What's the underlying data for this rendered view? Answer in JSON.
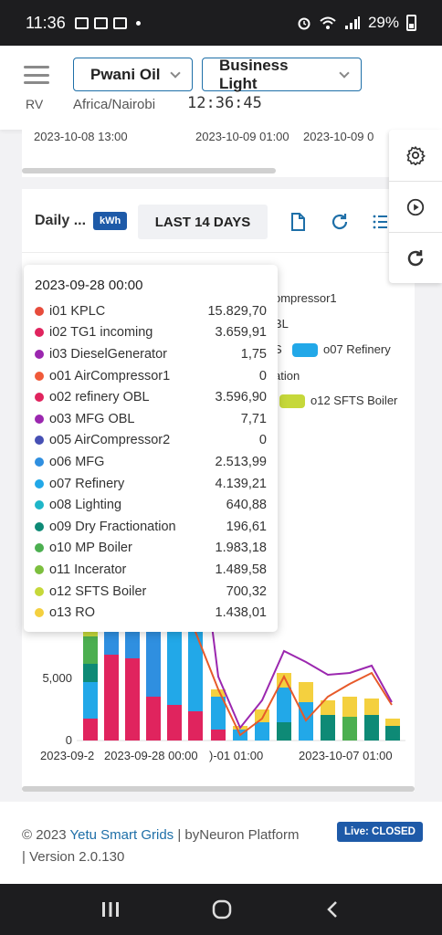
{
  "status_bar": {
    "time": "11:36",
    "battery": "29%",
    "notification_icons": [
      "gallery-icon",
      "mail-icon",
      "mail-icon"
    ],
    "right_icons": [
      "alarm-icon",
      "wifi-icon",
      "signal-icon"
    ]
  },
  "header": {
    "menu_icon": "hamburger-icon",
    "user_initials": "RV",
    "site_select": "Pwani Oil",
    "plan_select": "Business Light",
    "timezone": "Africa/Nairobi",
    "clock": "12:36:45"
  },
  "top_card": {
    "axis_labels": [
      "2023-10-08 13:00",
      "2023-10-09 01:00",
      "2023-10-09 0"
    ]
  },
  "floating_actions": [
    "settings-icon",
    "play-icon",
    "refresh-icon"
  ],
  "card": {
    "title": "Daily ...",
    "unit": "kWh",
    "range": "LAST 14 DAYS",
    "toolbar_icons": [
      "file-icon",
      "refresh-icon",
      "list-icon"
    ]
  },
  "legend_fragments": {
    "f1": "ompressor1",
    "f2": "BL",
    "f3": "S",
    "f4": "o07 Refinery",
    "f5": "ation",
    "f6": "o12 SFTS Boiler"
  },
  "tooltip": {
    "title": "2023-09-28 00:00",
    "rows": [
      {
        "name": "i01 KPLC",
        "value": "15.829,70",
        "color": "#e74c3c"
      },
      {
        "name": "i02 TG1 incoming",
        "value": "3.659,91",
        "color": "#e0245e"
      },
      {
        "name": "i03 DieselGenerator",
        "value": "1,75",
        "color": "#9b27af"
      },
      {
        "name": "o01 AirCompressor1",
        "value": "0",
        "color": "#f05a3a"
      },
      {
        "name": "o02 refinery OBL",
        "value": "3.596,90",
        "color": "#e0245e"
      },
      {
        "name": "o03 MFG OBL",
        "value": "7,71",
        "color": "#9b27af"
      },
      {
        "name": "o05 AirCompressor2",
        "value": "0",
        "color": "#4650b4"
      },
      {
        "name": "o06 MFG",
        "value": "2.513,99",
        "color": "#2f8fe0"
      },
      {
        "name": "o07 Refinery",
        "value": "4.139,21",
        "color": "#22a8e8"
      },
      {
        "name": "o08 Lighting",
        "value": "640,88",
        "color": "#1fb6c8"
      },
      {
        "name": "o09 Dry Fractionation",
        "value": "196,61",
        "color": "#0e8a76"
      },
      {
        "name": "o10 MP Boiler",
        "value": "1.983,18",
        "color": "#4caf50"
      },
      {
        "name": "o11 Incerator",
        "value": "1.489,58",
        "color": "#7cbf3e"
      },
      {
        "name": "o12 SFTS Boiler",
        "value": "700,32",
        "color": "#c6d83a"
      },
      {
        "name": "o13 RO",
        "value": "1.438,01",
        "color": "#f4d03f"
      }
    ]
  },
  "chart_data": {
    "type": "bar",
    "y_ticks": [
      "5,000",
      "0"
    ],
    "x_labels": [
      "2023-09-2",
      "2023-09-28 00:00",
      ")-01 01:00",
      "2023-10-07 01:00"
    ]
  },
  "footer": {
    "prefix": "© 2023 ",
    "company": "Yetu Smart Grids",
    "middle": " | byNeuron Platform",
    "version_line": "| Version 2.0.130",
    "live_badge": "Live: CLOSED"
  },
  "nav_icons": [
    "recent-apps-icon",
    "home-icon",
    "back-icon"
  ]
}
